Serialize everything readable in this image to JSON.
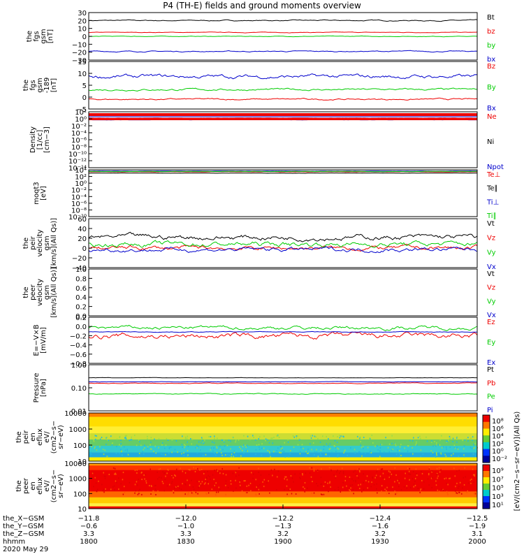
{
  "title": "P4 (TH-E) fields and ground moments overview",
  "colors": {
    "black": "#000000",
    "red": "#ee0000",
    "green": "#00cc00",
    "blue": "#0000cc"
  },
  "chart_data": [
    {
      "type": "line",
      "ylabel": [
        "the",
        "fgs",
        "gsm",
        "[nT]"
      ],
      "yticks": [
        "30",
        "20",
        "10",
        "0",
        "−10",
        "−20",
        "−30"
      ],
      "ylim": [
        -30,
        30
      ],
      "series": [
        {
          "name": "Bt",
          "color": "black",
          "level": 20,
          "wig": 1.5
        },
        {
          "name": "bz",
          "color": "red",
          "level": 5,
          "wig": 0.8
        },
        {
          "name": "by",
          "color": "green",
          "level": 0,
          "wig": 0.8
        },
        {
          "name": "bx",
          "color": "blue",
          "level": -19,
          "wig": 1.5
        }
      ]
    },
    {
      "type": "line",
      "ylabel": [
        "the",
        "fgs",
        "gsm",
        "-189",
        "[nT]"
      ],
      "yticks": [
        "15",
        "10",
        "5",
        "0",
        "−5"
      ],
      "ylim": [
        -7,
        15
      ],
      "series": [
        {
          "name": "Bz",
          "color": "red",
          "level": -2.5,
          "wig": 0.8
        },
        {
          "name": "By",
          "color": "green",
          "level": 2,
          "wig": 1
        },
        {
          "name": "Bx",
          "color": "blue",
          "level": 8,
          "wig": 2
        }
      ]
    },
    {
      "type": "line",
      "scale": "log",
      "ylabel": [
        "Density",
        "[1/cc]",
        "[cm−3]"
      ],
      "yticks": [
        "10²",
        "10⁰",
        "10⁻²",
        "10⁻⁴",
        "10⁻⁶",
        "10⁻⁸",
        "10⁻¹⁰",
        "10⁻¹²",
        "10⁻¹⁴"
      ],
      "ylim": [
        -14,
        2
      ],
      "series": [
        {
          "name": "Ne",
          "color": "red",
          "level": 0.2,
          "wig": 0.05
        },
        {
          "name": "Ni",
          "color": "black",
          "level": 0.0,
          "wig": 0.05
        },
        {
          "name": "Npot",
          "color": "blue",
          "level": -0.3,
          "wig": 0.05
        }
      ]
    },
    {
      "type": "line",
      "scale": "log",
      "ylabel": [
        "moqt3",
        "[eV]"
      ],
      "yticks": [
        "10⁴",
        "10²",
        "10⁰",
        "10⁻²",
        "10⁻⁴",
        "10⁻⁶",
        "10⁻⁸",
        "10⁻¹⁰"
      ],
      "ylim": [
        -10,
        4
      ],
      "series": [
        {
          "name": "Te⊥",
          "color": "red",
          "level": 3.4,
          "wig": 0.08
        },
        {
          "name": "Te∥",
          "color": "black",
          "level": 3.0,
          "wig": 0.08
        },
        {
          "name": "Ti⊥",
          "color": "blue",
          "level": 3.6,
          "wig": 0.08
        },
        {
          "name": "Ti∥",
          "color": "green",
          "level": 3.5,
          "wig": 0.08
        }
      ]
    },
    {
      "type": "line",
      "ylabel": [
        "the",
        "peir",
        "velocity",
        "gsm",
        "[km/s](All Qs)]"
      ],
      "yticks": [
        "60",
        "40",
        "20",
        "0",
        "−20",
        "−40"
      ],
      "ylim": [
        -40,
        60
      ],
      "series": [
        {
          "name": "Vt",
          "color": "black",
          "level": 22,
          "wig": 12
        },
        {
          "name": "Vz",
          "color": "red",
          "level": 0,
          "wig": 10
        },
        {
          "name": "Vy",
          "color": "green",
          "level": 8,
          "wig": 12
        },
        {
          "name": "Vx",
          "color": "blue",
          "level": -3,
          "wig": 10
        }
      ]
    },
    {
      "type": "line",
      "ylabel": [
        "the",
        "peer",
        "velocity",
        "gsm",
        "[km/s](All Qs)]"
      ],
      "yticks": [
        "1.0",
        "0.8",
        "0.6",
        "0.4",
        "0.2",
        "0.0"
      ],
      "ylim": [
        0,
        1
      ],
      "series": [
        {
          "name": "Vt",
          "color": "black"
        },
        {
          "name": "Vz",
          "color": "red"
        },
        {
          "name": "Vy",
          "color": "green"
        },
        {
          "name": "Vx",
          "color": "blue"
        }
      ]
    },
    {
      "type": "line",
      "ylabel": [
        "E=−V×B",
        "[mV/m]"
      ],
      "yticks": [
        "0.2",
        "0.0",
        "−0.2",
        "−0.4",
        "−0.6",
        "−0.8"
      ],
      "ylim": [
        -0.8,
        0.3
      ],
      "series": [
        {
          "name": "Ez",
          "color": "red",
          "level": -0.15,
          "wig": 0.15
        },
        {
          "name": "Ey",
          "color": "green",
          "level": 0.05,
          "wig": 0.1
        },
        {
          "name": "Ex",
          "color": "blue",
          "level": -0.05,
          "wig": 0.02
        }
      ]
    },
    {
      "type": "line",
      "scale": "log",
      "ylabel": [
        "Pressure",
        "[nPa]"
      ],
      "yticks": [
        "1.00",
        "0.10",
        "0.01"
      ],
      "ylim": [
        -2.2,
        0.1
      ],
      "series": [
        {
          "name": "Pt",
          "color": "black",
          "level": -0.55,
          "wig": 0.02
        },
        {
          "name": "Pb",
          "color": "red",
          "level": -0.82,
          "wig": 0.04
        },
        {
          "name": "Pe",
          "color": "green",
          "level": -1.35,
          "wig": 0.05
        },
        {
          "name": "Pi",
          "color": "blue",
          "level": -0.75,
          "wig": 0.02
        }
      ]
    },
    {
      "type": "heatmap",
      "ylabel": [
        "the",
        "peir",
        "en",
        "eflux",
        "eV/",
        "(cm2−s−",
        "sr−eV)"
      ],
      "yticks": [
        "10000",
        "1000",
        "100",
        "10"
      ],
      "ylim": [
        5,
        20000
      ]
    },
    {
      "type": "heatmap",
      "ylabel": [
        "the",
        "peer",
        "en",
        "eflux",
        "eV/",
        "(cm2−s−",
        "sr−eV)"
      ],
      "yticks": [
        "10000",
        "1000",
        "100",
        "10"
      ],
      "ylim": [
        5,
        20000
      ]
    }
  ],
  "colorbar_top": {
    "ticks": [
      "10⁸",
      "10⁶",
      "10⁴",
      "10²",
      "10⁰",
      "10⁻²"
    ]
  },
  "colorbar_bottom": {
    "ticks": [
      "10⁹",
      "10⁷",
      "10⁵",
      "10³",
      "10¹"
    ]
  },
  "colorbar_label": "[eV/(cm2−s−sr−eV)](All Qs)",
  "colorbar_label_bottom": "[eV/(cm2−s−sr−eV)]",
  "xaxis": {
    "rows": [
      "the_X−GSM",
      "the_Y−GSM",
      "the_Z−GSM",
      "hhmm",
      "2020 May 29"
    ],
    "ticks": [
      {
        "v": [
          "−11.8",
          "−0.6",
          "3.3",
          "1800"
        ]
      },
      {
        "v": [
          "−12.0",
          "−1.0",
          "3.3",
          "1830"
        ]
      },
      {
        "v": [
          "−12.2",
          "−1.3",
          "3.2",
          "1900"
        ]
      },
      {
        "v": [
          "−12.4",
          "−1.6",
          "3.2",
          "1930"
        ]
      },
      {
        "v": [
          "−12.5",
          "−1.9",
          "3.1",
          "2000"
        ]
      }
    ]
  }
}
